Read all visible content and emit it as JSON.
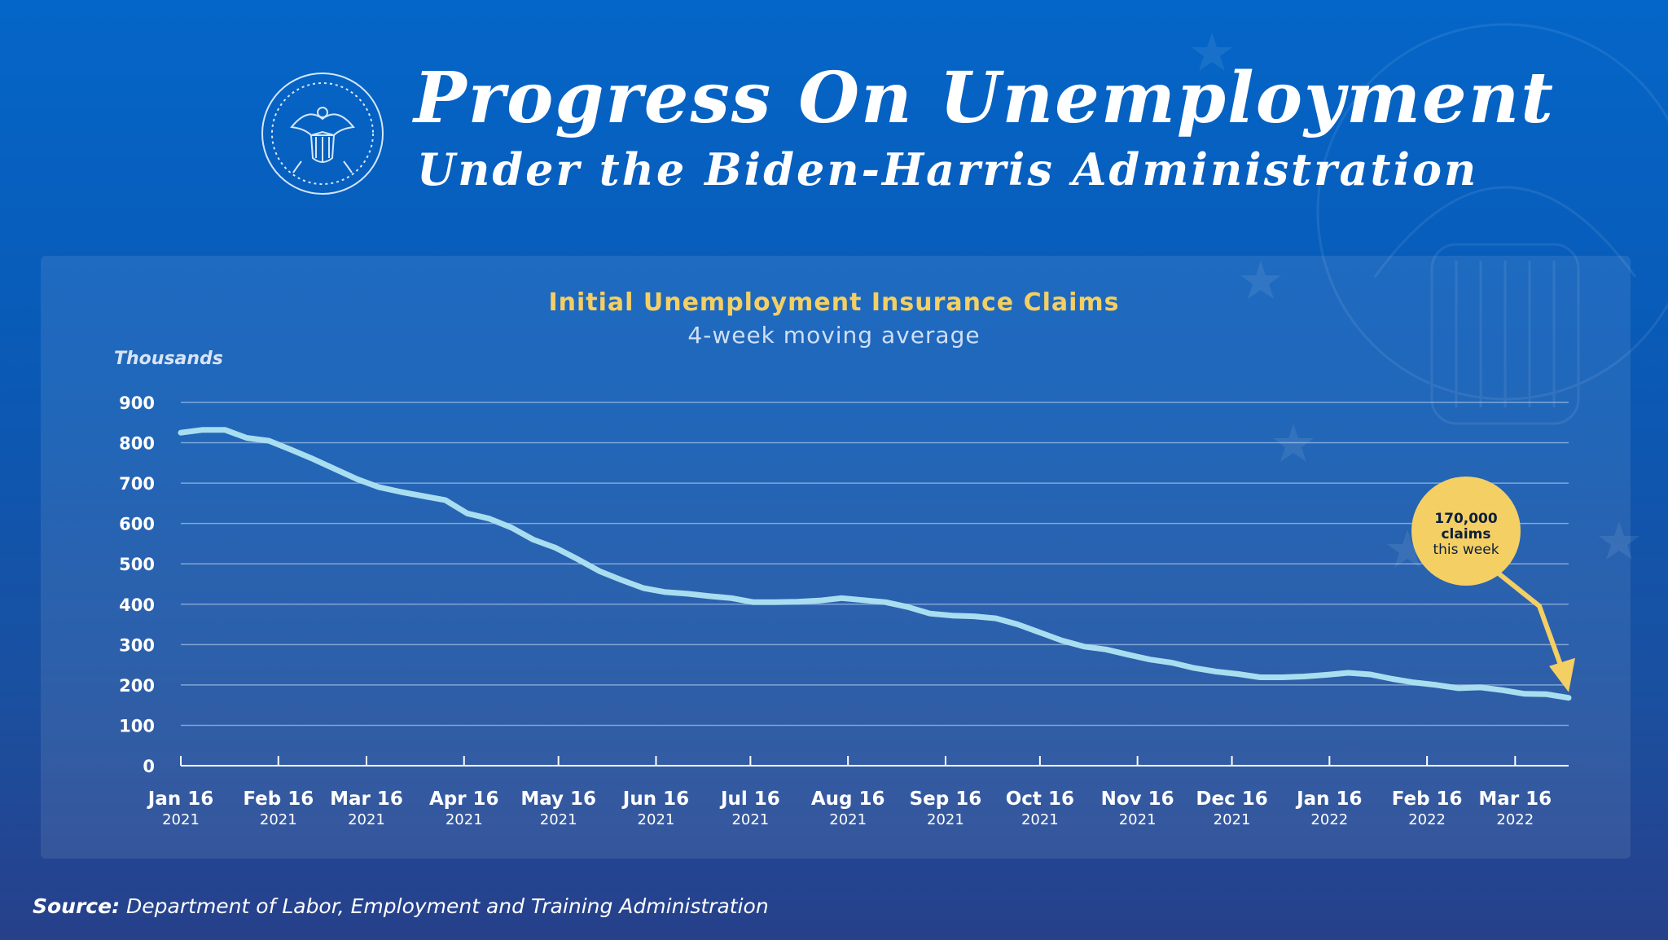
{
  "header": {
    "title": "Progress On Unemployment",
    "subtitle": "Under the Biden-Harris Administration",
    "seal_icon": "presidential-seal-icon"
  },
  "chart_data": {
    "type": "line",
    "title": "Initial Unemployment Insurance Claims",
    "subtitle": "4-week moving average",
    "ylabel": "Thousands",
    "ylim": [
      0,
      900
    ],
    "yticks": [
      "0",
      "100",
      "200",
      "300",
      "400",
      "500",
      "600",
      "700",
      "800",
      "900"
    ],
    "grid": true,
    "xticks": [
      {
        "label": "Jan 16",
        "year": "2021",
        "date": "2021-01-16"
      },
      {
        "label": "Feb 16",
        "year": "2021",
        "date": "2021-02-16"
      },
      {
        "label": "Mar 16",
        "year": "2021",
        "date": "2021-03-16"
      },
      {
        "label": "Apr 16",
        "year": "2021",
        "date": "2021-04-16"
      },
      {
        "label": "May 16",
        "year": "2021",
        "date": "2021-05-16"
      },
      {
        "label": "Jun 16",
        "year": "2021",
        "date": "2021-06-16"
      },
      {
        "label": "Jul 16",
        "year": "2021",
        "date": "2021-07-16"
      },
      {
        "label": "Aug 16",
        "year": "2021",
        "date": "2021-08-16"
      },
      {
        "label": "Sep 16",
        "year": "2021",
        "date": "2021-09-16"
      },
      {
        "label": "Oct 16",
        "year": "2021",
        "date": "2021-10-16"
      },
      {
        "label": "Nov 16",
        "year": "2021",
        "date": "2021-11-16"
      },
      {
        "label": "Dec 16",
        "year": "2021",
        "date": "2021-12-16"
      },
      {
        "label": "Jan 16",
        "year": "2022",
        "date": "2022-01-16"
      },
      {
        "label": "Feb 16",
        "year": "2022",
        "date": "2022-02-16"
      },
      {
        "label": "Mar 16",
        "year": "2022",
        "date": "2022-03-16"
      }
    ],
    "xlim": [
      "2021-01-16",
      "2022-04-02"
    ],
    "series": [
      {
        "color": "#a9def0",
        "points": [
          [
            "2021-01-16",
            825
          ],
          [
            "2021-01-23",
            832
          ],
          [
            "2021-01-30",
            832
          ],
          [
            "2021-02-06",
            812
          ],
          [
            "2021-02-13",
            805
          ],
          [
            "2021-02-20",
            783
          ],
          [
            "2021-02-27",
            760
          ],
          [
            "2021-03-06",
            735
          ],
          [
            "2021-03-13",
            710
          ],
          [
            "2021-03-20",
            690
          ],
          [
            "2021-03-27",
            678
          ],
          [
            "2021-04-03",
            668
          ],
          [
            "2021-04-10",
            658
          ],
          [
            "2021-04-17",
            625
          ],
          [
            "2021-04-24",
            612
          ],
          [
            "2021-05-01",
            590
          ],
          [
            "2021-05-08",
            560
          ],
          [
            "2021-05-15",
            540
          ],
          [
            "2021-05-22",
            512
          ],
          [
            "2021-05-29",
            482
          ],
          [
            "2021-06-05",
            460
          ],
          [
            "2021-06-12",
            440
          ],
          [
            "2021-06-19",
            430
          ],
          [
            "2021-06-26",
            426
          ],
          [
            "2021-07-03",
            420
          ],
          [
            "2021-07-10",
            415
          ],
          [
            "2021-07-17",
            405
          ],
          [
            "2021-07-24",
            405
          ],
          [
            "2021-07-31",
            406
          ],
          [
            "2021-08-07",
            409
          ],
          [
            "2021-08-14",
            415
          ],
          [
            "2021-08-21",
            410
          ],
          [
            "2021-08-28",
            405
          ],
          [
            "2021-09-04",
            393
          ],
          [
            "2021-09-11",
            377
          ],
          [
            "2021-09-18",
            372
          ],
          [
            "2021-09-25",
            370
          ],
          [
            "2021-10-02",
            365
          ],
          [
            "2021-10-09",
            350
          ],
          [
            "2021-10-16",
            330
          ],
          [
            "2021-10-23",
            310
          ],
          [
            "2021-10-30",
            295
          ],
          [
            "2021-11-06",
            288
          ],
          [
            "2021-11-13",
            275
          ],
          [
            "2021-11-20",
            263
          ],
          [
            "2021-11-27",
            255
          ],
          [
            "2021-12-04",
            242
          ],
          [
            "2021-12-11",
            233
          ],
          [
            "2021-12-18",
            227
          ],
          [
            "2021-12-25",
            219
          ],
          [
            "2022-01-01",
            219
          ],
          [
            "2022-01-08",
            221
          ],
          [
            "2022-01-15",
            225
          ],
          [
            "2022-01-22",
            230
          ],
          [
            "2022-01-29",
            226
          ],
          [
            "2022-02-05",
            215
          ],
          [
            "2022-02-12",
            206
          ],
          [
            "2022-02-19",
            200
          ],
          [
            "2022-02-26",
            192
          ],
          [
            "2022-03-05",
            194
          ],
          [
            "2022-03-12",
            187
          ],
          [
            "2022-03-19",
            178
          ],
          [
            "2022-03-26",
            177
          ],
          [
            "2022-04-02",
            168
          ]
        ]
      }
    ],
    "annotation": {
      "line1": "170,000",
      "line2": "claims",
      "line3": "this week",
      "color": "#f4cf63",
      "target": [
        "2022-04-02",
        170
      ]
    }
  },
  "footer": {
    "source_label": "Source:",
    "source_text": "Department of Labor, Employment and Training Administration"
  }
}
